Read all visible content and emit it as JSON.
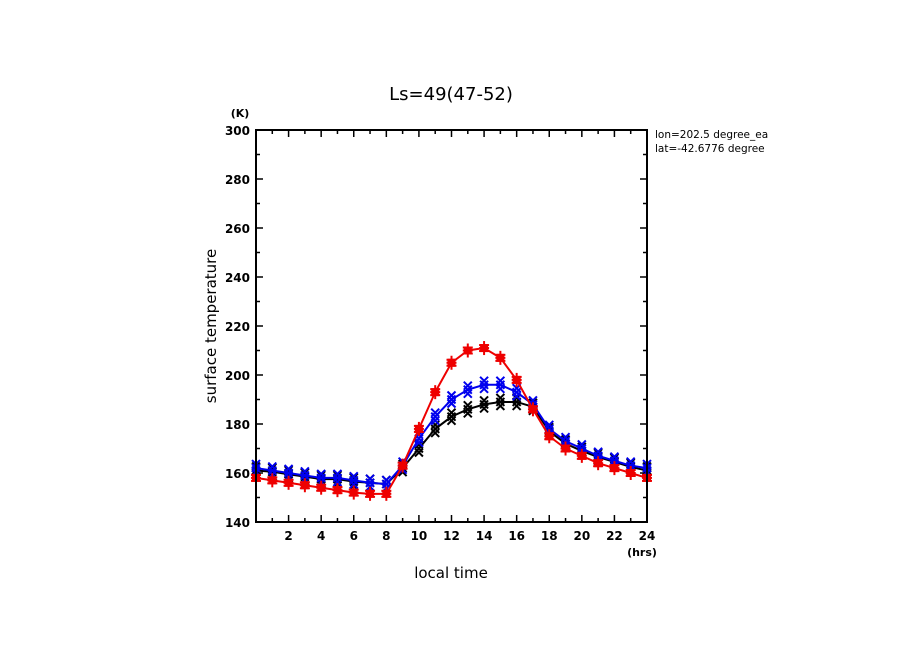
{
  "chart_data": {
    "type": "line",
    "title": "Ls=49(47-52)",
    "xlabel": "local time",
    "ylabel": "surface temperature",
    "x_unit": "(hrs)",
    "y_unit": "(K)",
    "xlim": [
      0,
      24
    ],
    "ylim": [
      140,
      300
    ],
    "x_ticks": [
      2,
      4,
      6,
      8,
      10,
      12,
      14,
      16,
      18,
      20,
      22,
      24
    ],
    "y_ticks": [
      140,
      160,
      180,
      200,
      220,
      240,
      260,
      280,
      300
    ],
    "grid": false,
    "annotations": [
      "lon=202.5 degree_ea",
      "lat=-42.6776 degree"
    ],
    "x": [
      0,
      1,
      2,
      3,
      4,
      5,
      6,
      7,
      8,
      9,
      10,
      11,
      12,
      13,
      14,
      15,
      16,
      17,
      18,
      19,
      20,
      21,
      22,
      23,
      24
    ],
    "series": [
      {
        "name": "black",
        "color": "#000000",
        "marker": "x",
        "values": [
          161,
          160.5,
          159.5,
          158.5,
          157.5,
          157.5,
          156.5,
          156,
          155.5,
          162,
          170,
          178,
          183,
          186,
          188,
          189,
          189,
          187,
          177,
          172,
          169,
          166.5,
          164.5,
          162.5,
          161
        ]
      },
      {
        "name": "blue",
        "color": "#0000ee",
        "marker": "x",
        "values": [
          162,
          161,
          160,
          159,
          158,
          158,
          157,
          156,
          155.5,
          163,
          174,
          183,
          190,
          194,
          196,
          196,
          193,
          188,
          178,
          173,
          170,
          167,
          165,
          163,
          162
        ]
      },
      {
        "name": "red",
        "color": "#ee0000",
        "marker": "+",
        "values": [
          158,
          157,
          156,
          155,
          154,
          153,
          152,
          151.5,
          151.5,
          163,
          178,
          193,
          205,
          210,
          211,
          207,
          198,
          186,
          175,
          170,
          167,
          164,
          162,
          160,
          158
        ]
      }
    ]
  }
}
